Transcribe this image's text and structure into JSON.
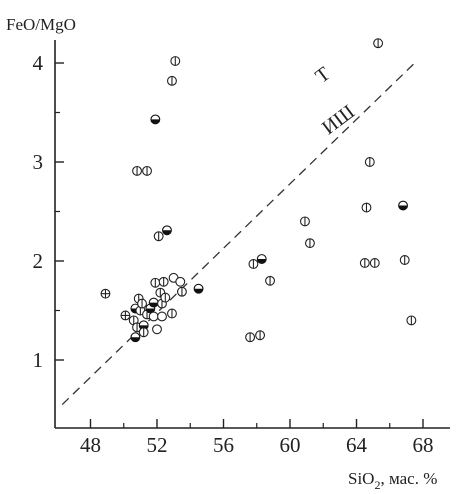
{
  "chart_data": {
    "type": "scatter",
    "title": "",
    "ylabel": "FeO/MgO",
    "xlabel_main": "SiO",
    "xlabel_sub": "2",
    "xlabel_unit": ", мас. %",
    "xlim": [
      46,
      70
    ],
    "ylim": [
      0.5,
      4.2
    ],
    "x_ticks": [
      48,
      52,
      56,
      60,
      64,
      68
    ],
    "y_ticks": [
      1,
      2,
      3,
      4
    ],
    "grid": false,
    "divider": {
      "label_above": "T",
      "label_below": "ИШ",
      "from": [
        46.3,
        0.55
      ],
      "to": [
        67.5,
        4.0
      ]
    },
    "markers": {
      "vertical_bar": "circle with vertical bar",
      "half_filled": "half-filled circle",
      "open": "open circle",
      "cross": "circle with cross"
    },
    "points": [
      {
        "x": 53.1,
        "y": 4.02,
        "m": "vertical_bar"
      },
      {
        "x": 52.9,
        "y": 3.82,
        "m": "vertical_bar"
      },
      {
        "x": 51.9,
        "y": 3.43,
        "m": "half_filled"
      },
      {
        "x": 50.8,
        "y": 2.91,
        "m": "vertical_bar"
      },
      {
        "x": 51.4,
        "y": 2.91,
        "m": "vertical_bar"
      },
      {
        "x": 52.6,
        "y": 2.31,
        "m": "half_filled"
      },
      {
        "x": 52.1,
        "y": 2.25,
        "m": "vertical_bar"
      },
      {
        "x": 48.9,
        "y": 1.67,
        "m": "cross"
      },
      {
        "x": 50.1,
        "y": 1.45,
        "m": "cross"
      },
      {
        "x": 50.7,
        "y": 1.52,
        "m": "half_filled"
      },
      {
        "x": 50.9,
        "y": 1.62,
        "m": "vertical_bar"
      },
      {
        "x": 51.0,
        "y": 1.5,
        "m": "vertical_bar"
      },
      {
        "x": 51.1,
        "y": 1.57,
        "m": "vertical_bar"
      },
      {
        "x": 50.6,
        "y": 1.4,
        "m": "vertical_bar"
      },
      {
        "x": 50.8,
        "y": 1.33,
        "m": "vertical_bar"
      },
      {
        "x": 50.7,
        "y": 1.23,
        "m": "half_filled"
      },
      {
        "x": 51.2,
        "y": 1.35,
        "m": "half_filled"
      },
      {
        "x": 51.4,
        "y": 1.46,
        "m": "vertical_bar"
      },
      {
        "x": 51.2,
        "y": 1.28,
        "m": "vertical_bar"
      },
      {
        "x": 51.6,
        "y": 1.52,
        "m": "half_filled"
      },
      {
        "x": 51.8,
        "y": 1.58,
        "m": "half_filled"
      },
      {
        "x": 51.9,
        "y": 1.78,
        "m": "vertical_bar"
      },
      {
        "x": 52.2,
        "y": 1.68,
        "m": "vertical_bar"
      },
      {
        "x": 52.3,
        "y": 1.57,
        "m": "vertical_bar"
      },
      {
        "x": 52.5,
        "y": 1.63,
        "m": "vertical_bar"
      },
      {
        "x": 52.4,
        "y": 1.79,
        "m": "vertical_bar"
      },
      {
        "x": 51.8,
        "y": 1.44,
        "m": "open"
      },
      {
        "x": 52.3,
        "y": 1.44,
        "m": "open"
      },
      {
        "x": 52.0,
        "y": 1.31,
        "m": "open"
      },
      {
        "x": 53.0,
        "y": 1.83,
        "m": "open"
      },
      {
        "x": 53.4,
        "y": 1.79,
        "m": "open"
      },
      {
        "x": 53.5,
        "y": 1.69,
        "m": "vertical_bar"
      },
      {
        "x": 52.9,
        "y": 1.47,
        "m": "vertical_bar"
      },
      {
        "x": 54.5,
        "y": 1.72,
        "m": "half_filled"
      },
      {
        "x": 57.8,
        "y": 1.97,
        "m": "vertical_bar"
      },
      {
        "x": 58.3,
        "y": 2.02,
        "m": "half_filled"
      },
      {
        "x": 58.8,
        "y": 1.8,
        "m": "vertical_bar"
      },
      {
        "x": 57.6,
        "y": 1.23,
        "m": "vertical_bar"
      },
      {
        "x": 58.2,
        "y": 1.25,
        "m": "vertical_bar"
      },
      {
        "x": 60.9,
        "y": 2.4,
        "m": "vertical_bar"
      },
      {
        "x": 61.2,
        "y": 2.18,
        "m": "vertical_bar"
      },
      {
        "x": 64.6,
        "y": 2.54,
        "m": "vertical_bar"
      },
      {
        "x": 64.8,
        "y": 3.0,
        "m": "vertical_bar"
      },
      {
        "x": 65.3,
        "y": 4.2,
        "m": "vertical_bar"
      },
      {
        "x": 64.5,
        "y": 1.98,
        "m": "vertical_bar"
      },
      {
        "x": 65.1,
        "y": 1.98,
        "m": "vertical_bar"
      },
      {
        "x": 66.8,
        "y": 2.56,
        "m": "half_filled"
      },
      {
        "x": 66.9,
        "y": 2.01,
        "m": "vertical_bar"
      },
      {
        "x": 67.3,
        "y": 1.4,
        "m": "vertical_bar"
      }
    ]
  }
}
